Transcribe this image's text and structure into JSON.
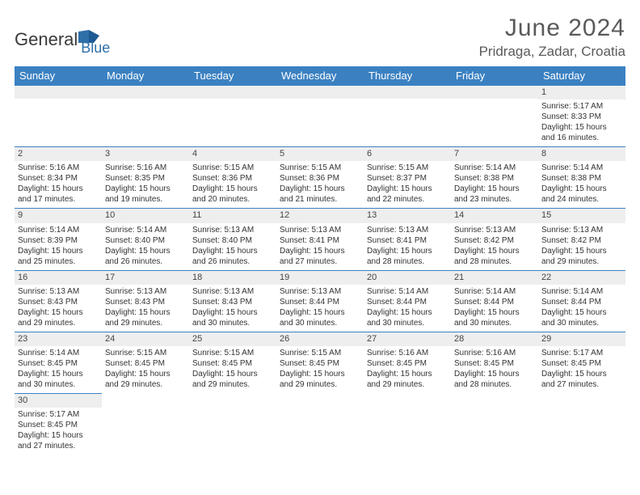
{
  "logo": {
    "text1": "General",
    "text2": "Blue"
  },
  "title": "June 2024",
  "location": "Pridraga, Zadar, Croatia",
  "colors": {
    "header_bg": "#3b81c2",
    "header_text": "#ffffff",
    "daynum_bg": "#eeeeee",
    "border": "#3b81c2",
    "title_color": "#5a5a5a",
    "body_text": "#333333",
    "logo_gray": "#3a3a3a",
    "logo_blue": "#2f6fa8"
  },
  "typography": {
    "title_fontsize": 30,
    "location_fontsize": 17,
    "weekday_fontsize": 13,
    "daynum_fontsize": 11,
    "body_fontsize": 10
  },
  "weekdays": [
    "Sunday",
    "Monday",
    "Tuesday",
    "Wednesday",
    "Thursday",
    "Friday",
    "Saturday"
  ],
  "weeks": [
    [
      {
        "n": "",
        "sr": "",
        "ss": "",
        "dl": ""
      },
      {
        "n": "",
        "sr": "",
        "ss": "",
        "dl": ""
      },
      {
        "n": "",
        "sr": "",
        "ss": "",
        "dl": ""
      },
      {
        "n": "",
        "sr": "",
        "ss": "",
        "dl": ""
      },
      {
        "n": "",
        "sr": "",
        "ss": "",
        "dl": ""
      },
      {
        "n": "",
        "sr": "",
        "ss": "",
        "dl": ""
      },
      {
        "n": "1",
        "sr": "Sunrise: 5:17 AM",
        "ss": "Sunset: 8:33 PM",
        "dl": "Daylight: 15 hours and 16 minutes."
      }
    ],
    [
      {
        "n": "2",
        "sr": "Sunrise: 5:16 AM",
        "ss": "Sunset: 8:34 PM",
        "dl": "Daylight: 15 hours and 17 minutes."
      },
      {
        "n": "3",
        "sr": "Sunrise: 5:16 AM",
        "ss": "Sunset: 8:35 PM",
        "dl": "Daylight: 15 hours and 19 minutes."
      },
      {
        "n": "4",
        "sr": "Sunrise: 5:15 AM",
        "ss": "Sunset: 8:36 PM",
        "dl": "Daylight: 15 hours and 20 minutes."
      },
      {
        "n": "5",
        "sr": "Sunrise: 5:15 AM",
        "ss": "Sunset: 8:36 PM",
        "dl": "Daylight: 15 hours and 21 minutes."
      },
      {
        "n": "6",
        "sr": "Sunrise: 5:15 AM",
        "ss": "Sunset: 8:37 PM",
        "dl": "Daylight: 15 hours and 22 minutes."
      },
      {
        "n": "7",
        "sr": "Sunrise: 5:14 AM",
        "ss": "Sunset: 8:38 PM",
        "dl": "Daylight: 15 hours and 23 minutes."
      },
      {
        "n": "8",
        "sr": "Sunrise: 5:14 AM",
        "ss": "Sunset: 8:38 PM",
        "dl": "Daylight: 15 hours and 24 minutes."
      }
    ],
    [
      {
        "n": "9",
        "sr": "Sunrise: 5:14 AM",
        "ss": "Sunset: 8:39 PM",
        "dl": "Daylight: 15 hours and 25 minutes."
      },
      {
        "n": "10",
        "sr": "Sunrise: 5:14 AM",
        "ss": "Sunset: 8:40 PM",
        "dl": "Daylight: 15 hours and 26 minutes."
      },
      {
        "n": "11",
        "sr": "Sunrise: 5:13 AM",
        "ss": "Sunset: 8:40 PM",
        "dl": "Daylight: 15 hours and 26 minutes."
      },
      {
        "n": "12",
        "sr": "Sunrise: 5:13 AM",
        "ss": "Sunset: 8:41 PM",
        "dl": "Daylight: 15 hours and 27 minutes."
      },
      {
        "n": "13",
        "sr": "Sunrise: 5:13 AM",
        "ss": "Sunset: 8:41 PM",
        "dl": "Daylight: 15 hours and 28 minutes."
      },
      {
        "n": "14",
        "sr": "Sunrise: 5:13 AM",
        "ss": "Sunset: 8:42 PM",
        "dl": "Daylight: 15 hours and 28 minutes."
      },
      {
        "n": "15",
        "sr": "Sunrise: 5:13 AM",
        "ss": "Sunset: 8:42 PM",
        "dl": "Daylight: 15 hours and 29 minutes."
      }
    ],
    [
      {
        "n": "16",
        "sr": "Sunrise: 5:13 AM",
        "ss": "Sunset: 8:43 PM",
        "dl": "Daylight: 15 hours and 29 minutes."
      },
      {
        "n": "17",
        "sr": "Sunrise: 5:13 AM",
        "ss": "Sunset: 8:43 PM",
        "dl": "Daylight: 15 hours and 29 minutes."
      },
      {
        "n": "18",
        "sr": "Sunrise: 5:13 AM",
        "ss": "Sunset: 8:43 PM",
        "dl": "Daylight: 15 hours and 30 minutes."
      },
      {
        "n": "19",
        "sr": "Sunrise: 5:13 AM",
        "ss": "Sunset: 8:44 PM",
        "dl": "Daylight: 15 hours and 30 minutes."
      },
      {
        "n": "20",
        "sr": "Sunrise: 5:14 AM",
        "ss": "Sunset: 8:44 PM",
        "dl": "Daylight: 15 hours and 30 minutes."
      },
      {
        "n": "21",
        "sr": "Sunrise: 5:14 AM",
        "ss": "Sunset: 8:44 PM",
        "dl": "Daylight: 15 hours and 30 minutes."
      },
      {
        "n": "22",
        "sr": "Sunrise: 5:14 AM",
        "ss": "Sunset: 8:44 PM",
        "dl": "Daylight: 15 hours and 30 minutes."
      }
    ],
    [
      {
        "n": "23",
        "sr": "Sunrise: 5:14 AM",
        "ss": "Sunset: 8:45 PM",
        "dl": "Daylight: 15 hours and 30 minutes."
      },
      {
        "n": "24",
        "sr": "Sunrise: 5:15 AM",
        "ss": "Sunset: 8:45 PM",
        "dl": "Daylight: 15 hours and 29 minutes."
      },
      {
        "n": "25",
        "sr": "Sunrise: 5:15 AM",
        "ss": "Sunset: 8:45 PM",
        "dl": "Daylight: 15 hours and 29 minutes."
      },
      {
        "n": "26",
        "sr": "Sunrise: 5:15 AM",
        "ss": "Sunset: 8:45 PM",
        "dl": "Daylight: 15 hours and 29 minutes."
      },
      {
        "n": "27",
        "sr": "Sunrise: 5:16 AM",
        "ss": "Sunset: 8:45 PM",
        "dl": "Daylight: 15 hours and 29 minutes."
      },
      {
        "n": "28",
        "sr": "Sunrise: 5:16 AM",
        "ss": "Sunset: 8:45 PM",
        "dl": "Daylight: 15 hours and 28 minutes."
      },
      {
        "n": "29",
        "sr": "Sunrise: 5:17 AM",
        "ss": "Sunset: 8:45 PM",
        "dl": "Daylight: 15 hours and 27 minutes."
      }
    ],
    [
      {
        "n": "30",
        "sr": "Sunrise: 5:17 AM",
        "ss": "Sunset: 8:45 PM",
        "dl": "Daylight: 15 hours and 27 minutes."
      },
      {
        "n": "",
        "sr": "",
        "ss": "",
        "dl": ""
      },
      {
        "n": "",
        "sr": "",
        "ss": "",
        "dl": ""
      },
      {
        "n": "",
        "sr": "",
        "ss": "",
        "dl": ""
      },
      {
        "n": "",
        "sr": "",
        "ss": "",
        "dl": ""
      },
      {
        "n": "",
        "sr": "",
        "ss": "",
        "dl": ""
      },
      {
        "n": "",
        "sr": "",
        "ss": "",
        "dl": ""
      }
    ]
  ]
}
